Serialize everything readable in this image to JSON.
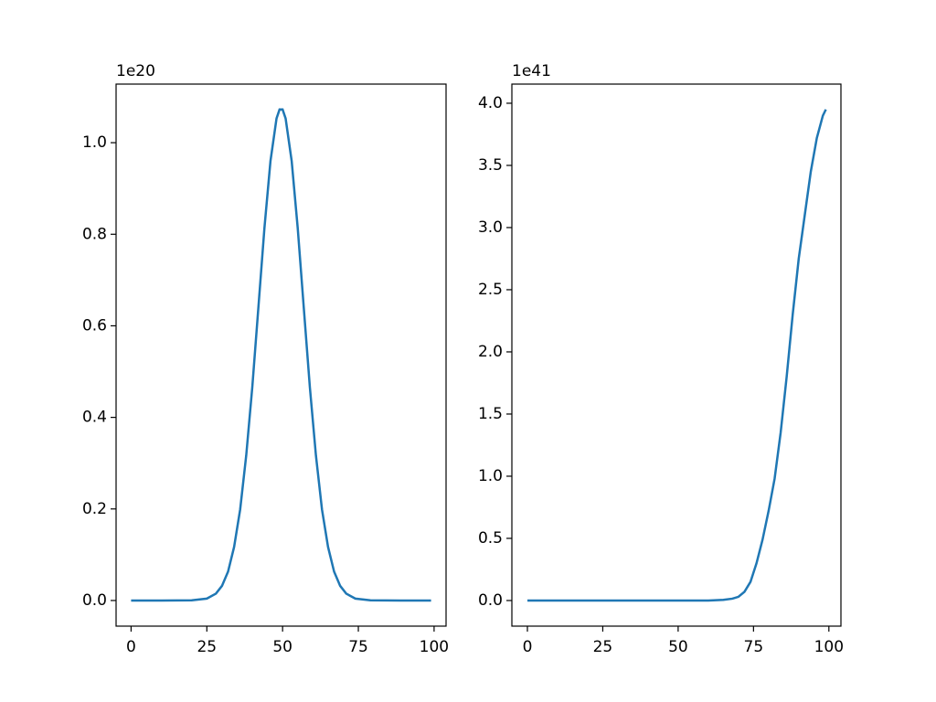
{
  "chart_data": [
    {
      "type": "line",
      "y_offset_label": "1e20",
      "color": "#1f77b4",
      "x": [
        0,
        10,
        20,
        25,
        28,
        30,
        32,
        34,
        36,
        38,
        40,
        42,
        44,
        46,
        48,
        49,
        50,
        51,
        53,
        55,
        57,
        59,
        61,
        63,
        65,
        67,
        69,
        71,
        74,
        79,
        89,
        99
      ],
      "values": [
        0,
        0,
        0.0003,
        0.0041,
        0.015,
        0.032,
        0.063,
        0.117,
        0.199,
        0.317,
        0.466,
        0.639,
        0.813,
        0.96,
        1.053,
        1.0725,
        1.0725,
        1.053,
        0.96,
        0.813,
        0.639,
        0.466,
        0.317,
        0.199,
        0.117,
        0.063,
        0.032,
        0.015,
        0.0041,
        0.0003,
        0,
        0
      ],
      "xlim": [
        -4.95,
        103.95
      ],
      "xticks": [
        0,
        25,
        50,
        75,
        100
      ],
      "ylim": [
        -0.056,
        1.128
      ],
      "yticks": [
        {
          "value": 0,
          "label": "0.0"
        },
        0.2,
        0.4,
        0.6,
        0.8,
        {
          "value": 1,
          "label": "1.0"
        }
      ]
    },
    {
      "type": "line",
      "y_offset_label": "1e41",
      "color": "#1f77b4",
      "x": [
        0,
        20,
        40,
        60,
        65,
        68,
        70,
        72,
        74,
        76,
        78,
        80,
        82,
        84,
        86,
        88,
        90,
        92,
        94,
        96,
        98,
        99
      ],
      "values": [
        0,
        0,
        0,
        0,
        0.005,
        0.015,
        0.03,
        0.07,
        0.15,
        0.3,
        0.49,
        0.72,
        0.98,
        1.35,
        1.8,
        2.3,
        2.75,
        3.1,
        3.45,
        3.72,
        3.9,
        3.95
      ],
      "xlim": [
        -5.15,
        104.0
      ],
      "xticks": [
        0,
        25,
        50,
        75,
        100
      ],
      "ylim": [
        -0.206,
        4.154
      ],
      "yticks": [
        {
          "value": 0,
          "label": "0.0"
        },
        0.5,
        {
          "value": 1,
          "label": "1.0"
        },
        1.5,
        {
          "value": 2,
          "label": "2.0"
        },
        2.5,
        {
          "value": 3,
          "label": "3.0"
        },
        3.5,
        {
          "value": 4,
          "label": "4.0"
        }
      ]
    }
  ]
}
